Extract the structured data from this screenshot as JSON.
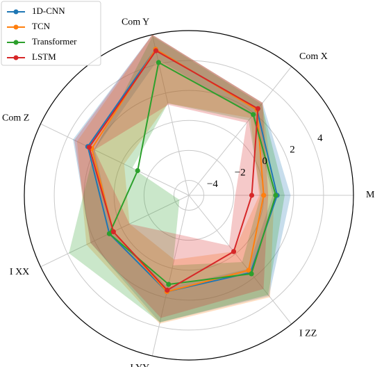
{
  "chart_data": {
    "type": "radar",
    "axes": [
      "Mass",
      "Com X",
      "Com Y",
      "Com Z",
      "I XX",
      "I YY",
      "I ZZ"
    ],
    "r_ticks": [
      -4,
      -2,
      0,
      2,
      4
    ],
    "rlim": [
      -5,
      6
    ],
    "grid": true,
    "legend_position": "top-left",
    "series": [
      {
        "name": "1D-CNN",
        "color": "#1f77b4",
        "values": [
          0.9,
          2.3,
          5.0,
          2.5,
          0.9,
          1.6,
          1.6
        ],
        "band_lower": [
          0.6,
          1.8,
          4.3,
          2.0,
          0.6,
          1.3,
          1.3
        ],
        "band_upper": [
          1.8,
          2.9,
          6.0,
          3.6,
          2.3,
          3.7,
          3.6
        ]
      },
      {
        "name": "TCN",
        "color": "#ff7f0e",
        "values": [
          0.0,
          2.3,
          5.0,
          2.2,
          0.6,
          1.6,
          1.4
        ],
        "band_lower": [
          -0.3,
          1.6,
          1.3,
          -0.2,
          -0.6,
          -0.6,
          -0.2
        ],
        "band_upper": [
          0.7,
          2.9,
          6.0,
          3.3,
          2.6,
          3.8,
          3.7
        ]
      },
      {
        "name": "Transformer",
        "color": "#2ca02c",
        "values": [
          0.8,
          1.9,
          4.1,
          -1.2,
          0.9,
          1.1,
          1.7
        ],
        "band_lower": [
          -0.2,
          1.4,
          1.3,
          -0.8,
          -4.3,
          -0.2,
          0.7
        ],
        "band_upper": [
          1.4,
          2.8,
          5.9,
          2.0,
          3.9,
          3.7,
          3.5
        ]
      },
      {
        "name": "LSTM",
        "color": "#d62728",
        "values": [
          -0.8,
          2.4,
          4.9,
          2.4,
          0.6,
          1.5,
          -0.2
        ],
        "band_lower": [
          -1.9,
          1.2,
          1.2,
          2.0,
          -0.6,
          -2.3,
          -0.7
        ],
        "band_upper": [
          0.3,
          2.9,
          6.0,
          3.5,
          2.3,
          3.4,
          3.0
        ]
      }
    ]
  }
}
